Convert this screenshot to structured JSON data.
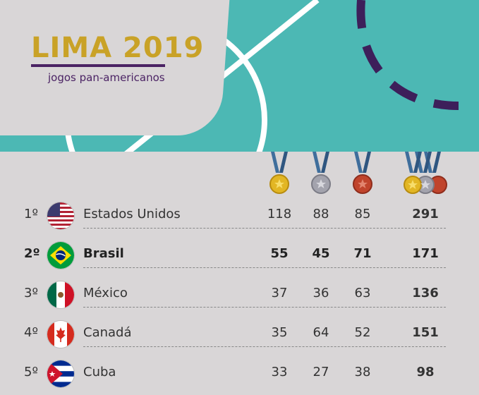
{
  "event": {
    "title": "LIMA 2019",
    "subtitle": "jogos pan-americanos"
  },
  "colors": {
    "banner": "#4cb8b4",
    "brand_gold": "#c9a227",
    "brand_purple": "#4b2364",
    "gold": "#e2b624",
    "silver": "#a3a3ad",
    "bronze": "#c0442c",
    "ribbon": "#3f6e9c"
  },
  "medal_icons": [
    "gold-medal-icon",
    "silver-medal-icon",
    "bronze-medal-icon",
    "total-medals-icon"
  ],
  "rows": [
    {
      "rank": "1º",
      "country": "Estados Unidos",
      "flag": "usa-flag-icon",
      "gold": "118",
      "silver": "88",
      "bronze": "85",
      "total": "291"
    },
    {
      "rank": "2º",
      "country": "Brasil",
      "flag": "brazil-flag-icon",
      "gold": "55",
      "silver": "45",
      "bronze": "71",
      "total": "171"
    },
    {
      "rank": "3º",
      "country": "México",
      "flag": "mexico-flag-icon",
      "gold": "37",
      "silver": "36",
      "bronze": "63",
      "total": "136"
    },
    {
      "rank": "4º",
      "country": "Canadá",
      "flag": "canada-flag-icon",
      "gold": "35",
      "silver": "64",
      "bronze": "52",
      "total": "151"
    },
    {
      "rank": "5º",
      "country": "Cuba",
      "flag": "cuba-flag-icon",
      "gold": "33",
      "silver": "27",
      "bronze": "38",
      "total": "98"
    }
  ]
}
